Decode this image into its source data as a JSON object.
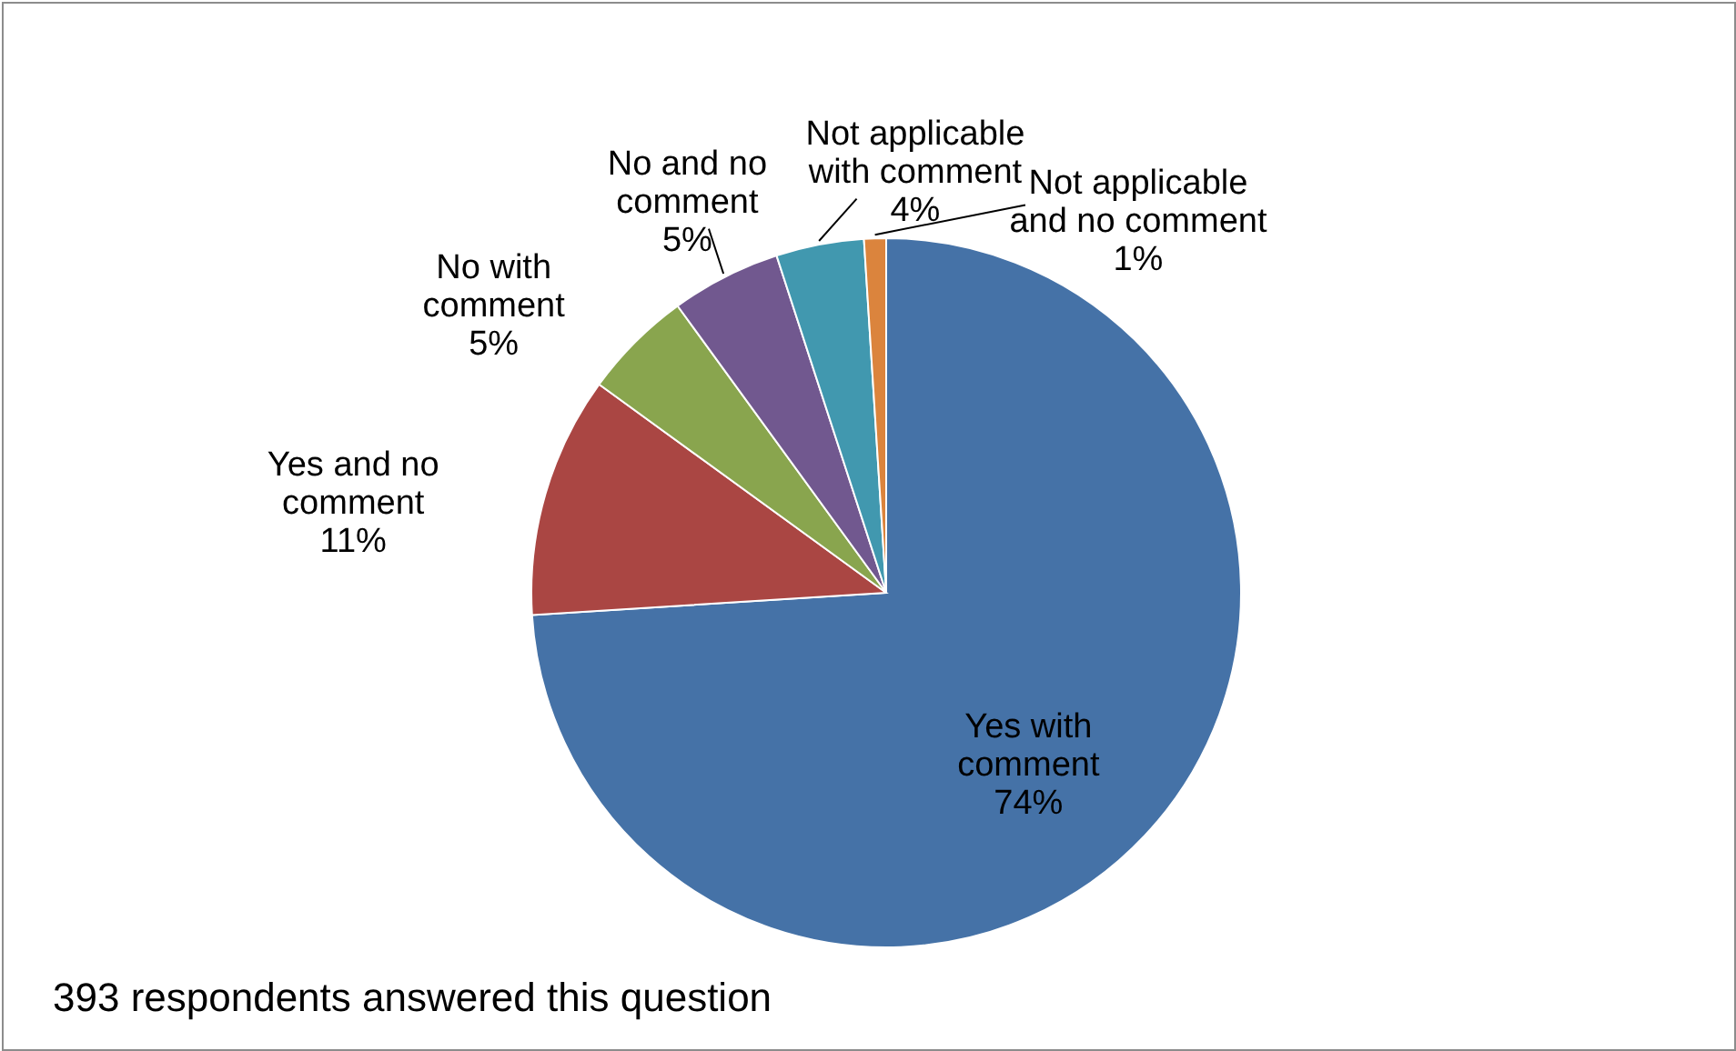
{
  "chart_data": {
    "type": "pie",
    "categories": [
      "Yes with comment",
      "Yes and no comment",
      "No with comment",
      "No and no comment",
      "Not applicable with comment",
      "Not applicable and no comment"
    ],
    "values": [
      74,
      11,
      5,
      5,
      4,
      1
    ],
    "value_labels": [
      "74%",
      "11%",
      "5%",
      "5%",
      "4%",
      "1%"
    ],
    "colors": [
      "#4572a7",
      "#aa4643",
      "#89a54e",
      "#71588f",
      "#4198af",
      "#db843d"
    ],
    "annotations": [
      "393 respondents answered this question"
    ]
  }
}
